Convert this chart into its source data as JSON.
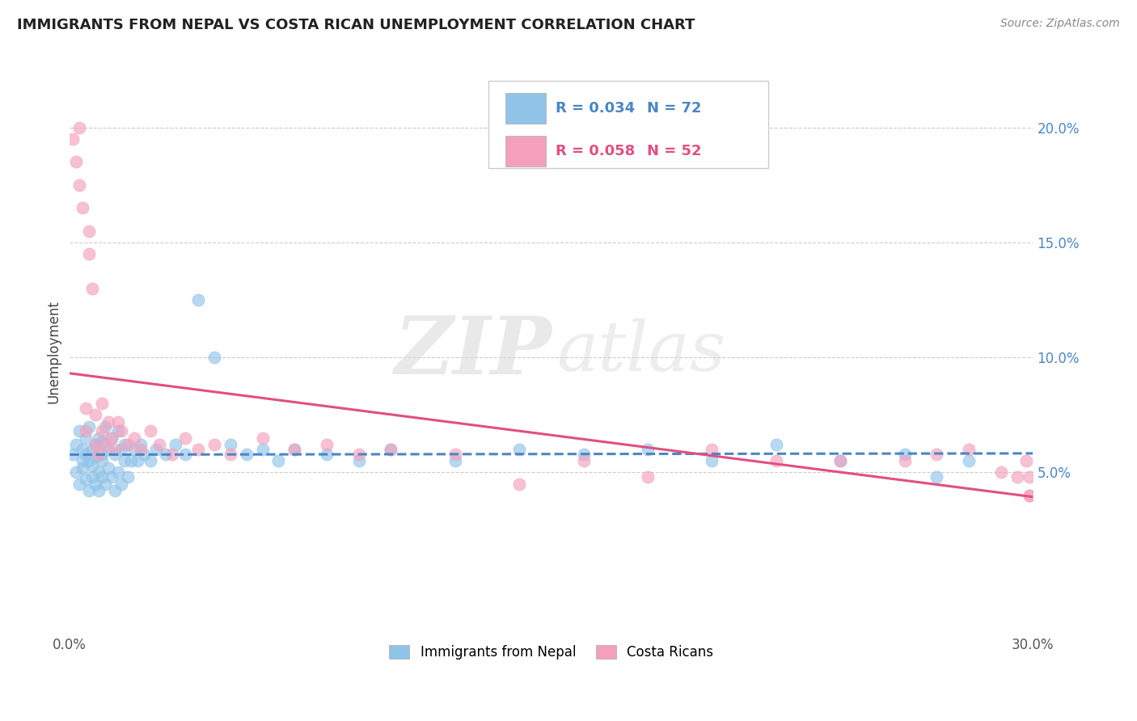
{
  "title": "IMMIGRANTS FROM NEPAL VS COSTA RICAN UNEMPLOYMENT CORRELATION CHART",
  "source": "Source: ZipAtlas.com",
  "ylabel_label": "Unemployment",
  "x_min": 0.0,
  "x_max": 0.3,
  "y_min": -0.02,
  "y_max": 0.225,
  "x_ticks": [
    0.0,
    0.05,
    0.1,
    0.15,
    0.2,
    0.25,
    0.3
  ],
  "x_tick_labels": [
    "0.0%",
    "",
    "",
    "",
    "",
    "",
    "30.0%"
  ],
  "y_ticks": [
    0.05,
    0.1,
    0.15,
    0.2
  ],
  "y_tick_labels": [
    "5.0%",
    "10.0%",
    "15.0%",
    "20.0%"
  ],
  "legend_labels": [
    "Immigrants from Nepal",
    "Costa Ricans"
  ],
  "color_blue": "#90c4e8",
  "color_pink": "#f4a0bc",
  "color_blue_line": "#4a86c8",
  "color_pink_line": "#e05080",
  "R_blue": 0.034,
  "N_blue": 72,
  "R_pink": 0.058,
  "N_pink": 52,
  "watermark_zip": "ZIP",
  "watermark_atlas": "atlas",
  "background_color": "#ffffff",
  "grid_color": "#cccccc",
  "blue_scatter_x": [
    0.001,
    0.002,
    0.002,
    0.003,
    0.003,
    0.004,
    0.004,
    0.004,
    0.005,
    0.005,
    0.005,
    0.006,
    0.006,
    0.006,
    0.007,
    0.007,
    0.007,
    0.008,
    0.008,
    0.008,
    0.009,
    0.009,
    0.009,
    0.01,
    0.01,
    0.01,
    0.01,
    0.011,
    0.011,
    0.012,
    0.012,
    0.013,
    0.013,
    0.014,
    0.014,
    0.015,
    0.015,
    0.016,
    0.016,
    0.017,
    0.017,
    0.018,
    0.019,
    0.02,
    0.021,
    0.022,
    0.023,
    0.025,
    0.027,
    0.03,
    0.033,
    0.036,
    0.04,
    0.045,
    0.05,
    0.055,
    0.06,
    0.065,
    0.07,
    0.08,
    0.09,
    0.1,
    0.12,
    0.14,
    0.16,
    0.18,
    0.2,
    0.22,
    0.24,
    0.26,
    0.27,
    0.28
  ],
  "blue_scatter_y": [
    0.058,
    0.05,
    0.062,
    0.045,
    0.068,
    0.055,
    0.06,
    0.052,
    0.047,
    0.058,
    0.065,
    0.042,
    0.055,
    0.07,
    0.048,
    0.06,
    0.053,
    0.045,
    0.062,
    0.057,
    0.05,
    0.065,
    0.042,
    0.055,
    0.048,
    0.063,
    0.058,
    0.045,
    0.07,
    0.052,
    0.06,
    0.048,
    0.065,
    0.042,
    0.058,
    0.05,
    0.068,
    0.045,
    0.06,
    0.055,
    0.062,
    0.048,
    0.055,
    0.06,
    0.055,
    0.062,
    0.058,
    0.055,
    0.06,
    0.058,
    0.062,
    0.058,
    0.125,
    0.1,
    0.062,
    0.058,
    0.06,
    0.055,
    0.06,
    0.058,
    0.055,
    0.06,
    0.055,
    0.06,
    0.058,
    0.06,
    0.055,
    0.062,
    0.055,
    0.058,
    0.048,
    0.055
  ],
  "pink_scatter_x": [
    0.001,
    0.002,
    0.003,
    0.003,
    0.004,
    0.005,
    0.005,
    0.006,
    0.006,
    0.007,
    0.008,
    0.008,
    0.009,
    0.01,
    0.01,
    0.011,
    0.012,
    0.013,
    0.014,
    0.015,
    0.016,
    0.018,
    0.02,
    0.022,
    0.025,
    0.028,
    0.032,
    0.036,
    0.04,
    0.045,
    0.05,
    0.06,
    0.07,
    0.08,
    0.09,
    0.1,
    0.12,
    0.14,
    0.16,
    0.18,
    0.2,
    0.22,
    0.24,
    0.26,
    0.27,
    0.28,
    0.29,
    0.295,
    0.298,
    0.299,
    0.299,
    0.299
  ],
  "pink_scatter_y": [
    0.195,
    0.185,
    0.175,
    0.2,
    0.165,
    0.068,
    0.078,
    0.155,
    0.145,
    0.13,
    0.062,
    0.075,
    0.058,
    0.068,
    0.08,
    0.062,
    0.072,
    0.065,
    0.06,
    0.072,
    0.068,
    0.062,
    0.065,
    0.06,
    0.068,
    0.062,
    0.058,
    0.065,
    0.06,
    0.062,
    0.058,
    0.065,
    0.06,
    0.062,
    0.058,
    0.06,
    0.058,
    0.045,
    0.055,
    0.048,
    0.06,
    0.055,
    0.055,
    0.055,
    0.058,
    0.06,
    0.05,
    0.048,
    0.055,
    0.048,
    0.04,
    0.04
  ]
}
